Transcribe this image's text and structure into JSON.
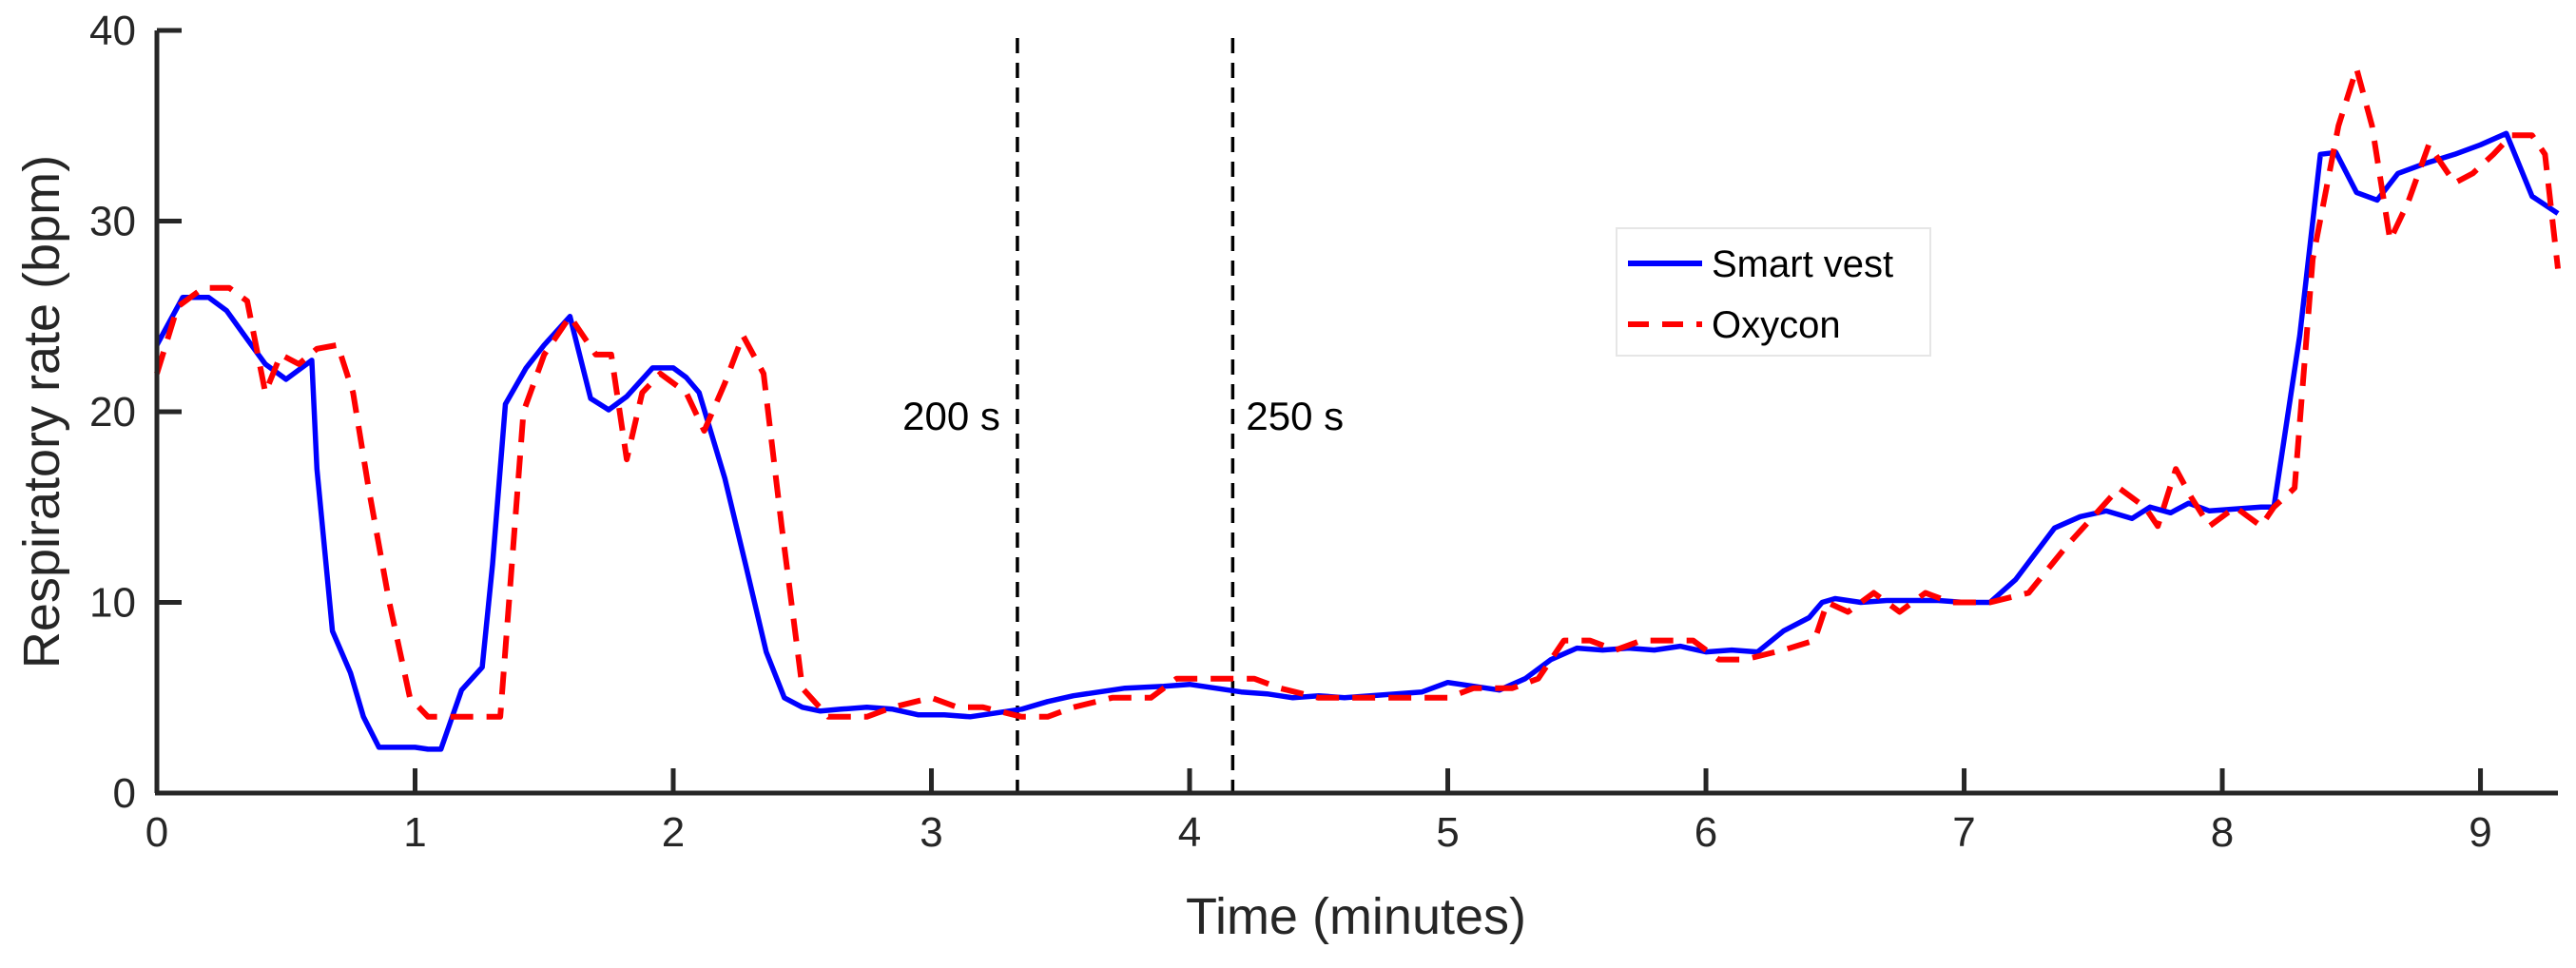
{
  "chart_data": {
    "type": "line",
    "title": "",
    "xlabel": "Time (minutes)",
    "ylabel": "Respiratory rate (bpm)",
    "xlim": [
      0,
      9.3
    ],
    "ylim": [
      0,
      40
    ],
    "xticks": [
      0,
      1,
      2,
      3,
      4,
      5,
      6,
      7,
      8,
      9
    ],
    "xtick_labels": [
      "0",
      "1",
      "2",
      "3",
      "4",
      "5",
      "6",
      "7",
      "8",
      "9"
    ],
    "yticks": [
      0,
      10,
      20,
      30,
      40
    ],
    "ytick_labels": [
      "0",
      "10",
      "20",
      "30",
      "40"
    ],
    "grid": false,
    "legend_position": "upper-center-right",
    "series": [
      {
        "name": "Smart vest",
        "color": "#0000ff",
        "style": "solid",
        "x": [
          0,
          0.1,
          0.2,
          0.27,
          0.35,
          0.42,
          0.5,
          0.55,
          0.6,
          0.62,
          0.68,
          0.75,
          0.8,
          0.86,
          0.93,
          1.0,
          1.05,
          1.1,
          1.18,
          1.26,
          1.3,
          1.35,
          1.43,
          1.5,
          1.6,
          1.68,
          1.75,
          1.82,
          1.92,
          2.0,
          2.05,
          2.1,
          2.2,
          2.28,
          2.36,
          2.43,
          2.5,
          2.57,
          2.65,
          2.75,
          2.85,
          2.95,
          3.05,
          3.15,
          3.25,
          3.35,
          3.45,
          3.55,
          3.65,
          3.75,
          3.9,
          4.0,
          4.1,
          4.2,
          4.3,
          4.4,
          4.5,
          4.6,
          4.7,
          4.8,
          4.9,
          5.0,
          5.1,
          5.2,
          5.3,
          5.4,
          5.5,
          5.6,
          5.7,
          5.8,
          5.9,
          6.0,
          6.1,
          6.2,
          6.3,
          6.4,
          6.45,
          6.5,
          6.6,
          6.7,
          6.8,
          6.9,
          7.0,
          7.1,
          7.2,
          7.35,
          7.45,
          7.55,
          7.65,
          7.72,
          7.8,
          7.87,
          7.95,
          8.05,
          8.15,
          8.2,
          8.3,
          8.38,
          8.44,
          8.52,
          8.6,
          8.68,
          8.78,
          8.9,
          9.0,
          9.1,
          9.2,
          9.3
        ],
        "values": [
          23.5,
          26.0,
          26.0,
          25.3,
          23.8,
          22.5,
          21.7,
          22.2,
          22.7,
          17.0,
          8.5,
          6.3,
          4.0,
          2.4,
          2.4,
          2.4,
          2.3,
          2.3,
          5.4,
          6.6,
          12.0,
          20.4,
          22.3,
          23.5,
          25.0,
          20.7,
          20.1,
          20.8,
          22.3,
          22.3,
          21.8,
          21.0,
          16.5,
          12.0,
          7.4,
          5.0,
          4.5,
          4.3,
          4.4,
          4.5,
          4.4,
          4.1,
          4.1,
          4.0,
          4.2,
          4.4,
          4.8,
          5.1,
          5.3,
          5.5,
          5.6,
          5.7,
          5.5,
          5.3,
          5.2,
          5.0,
          5.1,
          5.0,
          5.1,
          5.2,
          5.3,
          5.8,
          5.6,
          5.4,
          6.0,
          7.0,
          7.6,
          7.5,
          7.6,
          7.5,
          7.7,
          7.4,
          7.5,
          7.4,
          8.5,
          9.2,
          10.0,
          10.2,
          10.0,
          10.1,
          10.1,
          10.1,
          10.0,
          10.0,
          11.2,
          13.9,
          14.5,
          14.8,
          14.4,
          15.0,
          14.7,
          15.2,
          14.8,
          14.9,
          15.0,
          15.0,
          24.0,
          33.5,
          33.6,
          31.5,
          31.1,
          32.5,
          33.0,
          33.5,
          34.0,
          34.6,
          31.3,
          30.4
        ]
      },
      {
        "name": "Oxycon",
        "color": "#ff0000",
        "style": "dashed",
        "x": [
          0,
          0.08,
          0.18,
          0.28,
          0.35,
          0.42,
          0.48,
          0.55,
          0.62,
          0.7,
          0.76,
          0.82,
          0.9,
          0.98,
          1.05,
          1.15,
          1.25,
          1.33,
          1.42,
          1.5,
          1.6,
          1.7,
          1.76,
          1.82,
          1.88,
          1.95,
          2.05,
          2.12,
          2.2,
          2.27,
          2.35,
          2.42,
          2.5,
          2.6,
          2.75,
          2.85,
          3.0,
          3.1,
          3.2,
          3.35,
          3.45,
          3.55,
          3.7,
          3.85,
          3.95,
          4.05,
          4.15,
          4.25,
          4.35,
          4.5,
          4.6,
          4.75,
          4.9,
          5.0,
          5.1,
          5.25,
          5.35,
          5.45,
          5.55,
          5.65,
          5.75,
          5.85,
          5.95,
          6.05,
          6.15,
          6.3,
          6.42,
          6.47,
          6.55,
          6.65,
          6.75,
          6.85,
          6.95,
          7.1,
          7.25,
          7.4,
          7.5,
          7.6,
          7.7,
          7.75,
          7.82,
          7.88,
          7.95,
          8.05,
          8.15,
          8.2,
          8.28,
          8.35,
          8.45,
          8.52,
          8.58,
          8.65,
          8.72,
          8.8,
          8.85,
          8.9,
          8.97,
          9.05,
          9.12,
          9.2,
          9.25,
          9.3
        ],
        "values": [
          22.0,
          25.5,
          26.5,
          26.5,
          25.8,
          21.0,
          23.0,
          22.5,
          23.3,
          23.5,
          21.0,
          16.0,
          10.0,
          5.0,
          4.0,
          4.0,
          4.0,
          4.0,
          20.0,
          23.0,
          25.0,
          23.0,
          23.0,
          17.5,
          21.0,
          22.0,
          21.0,
          19.0,
          21.5,
          24.0,
          22.0,
          14.0,
          5.5,
          4.0,
          4.0,
          4.5,
          5.0,
          4.5,
          4.5,
          4.0,
          4.0,
          4.5,
          5.0,
          5.0,
          6.0,
          6.0,
          6.0,
          6.0,
          5.5,
          5.0,
          5.0,
          5.0,
          5.0,
          5.0,
          5.5,
          5.5,
          6.0,
          8.0,
          8.0,
          7.5,
          8.0,
          8.0,
          8.0,
          7.0,
          7.0,
          7.5,
          8.0,
          10.0,
          9.5,
          10.5,
          9.5,
          10.5,
          10.0,
          10.0,
          10.5,
          13.0,
          14.5,
          16.0,
          15.0,
          14.0,
          17.0,
          15.5,
          14.0,
          15.0,
          14.0,
          15.0,
          16.0,
          28.0,
          35.0,
          38.0,
          35.0,
          29.0,
          31.0,
          34.0,
          33.0,
          32.0,
          32.5,
          33.5,
          34.5,
          34.5,
          33.5,
          27.5
        ]
      }
    ],
    "annotations": [
      {
        "label": "200 s",
        "x_minutes": 3.333,
        "style": "dashed-vertical",
        "text_side": "left"
      },
      {
        "label": "250 s",
        "x_minutes": 4.167,
        "style": "dashed-vertical",
        "text_side": "right"
      }
    ]
  }
}
